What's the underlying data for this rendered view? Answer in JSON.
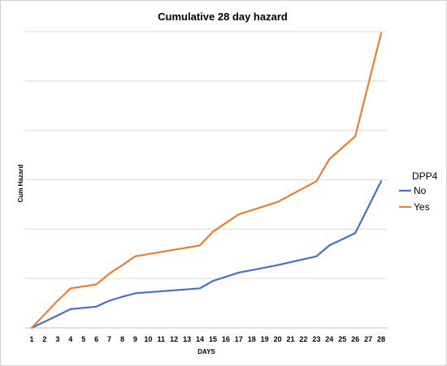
{
  "chart_data": {
    "type": "line",
    "title": "Cumulative  28 day hazard",
    "xlabel": "DAYS",
    "ylabel": "Cum Hazard",
    "legend_title": "DPP4",
    "legend_position": "right",
    "grid": true,
    "x": [
      1,
      3,
      4,
      6,
      7,
      8,
      9,
      14,
      15,
      17,
      20,
      23,
      24,
      26,
      28
    ],
    "x_ticks": [
      "1",
      "2",
      "3",
      "4",
      "5",
      "6",
      "7",
      "8",
      "9",
      "10",
      "11",
      "12",
      "13",
      "14",
      "15",
      "16",
      "17",
      "18",
      "19",
      "20",
      "21",
      "22",
      "23",
      "24",
      "25",
      "26",
      "27",
      "28"
    ],
    "ylim": [
      0,
      6
    ],
    "series": [
      {
        "name": "No",
        "color": "#4472C4",
        "values": [
          0.0,
          0.25,
          0.38,
          0.43,
          0.55,
          0.63,
          0.7,
          0.8,
          0.95,
          1.12,
          1.27,
          1.45,
          1.67,
          1.92,
          2.97
        ]
      },
      {
        "name": "Yes",
        "color": "#ED7D31",
        "values": [
          0.0,
          0.55,
          0.8,
          0.88,
          1.1,
          1.27,
          1.45,
          1.67,
          1.95,
          2.3,
          2.55,
          2.97,
          3.42,
          3.88,
          5.97
        ]
      }
    ]
  }
}
